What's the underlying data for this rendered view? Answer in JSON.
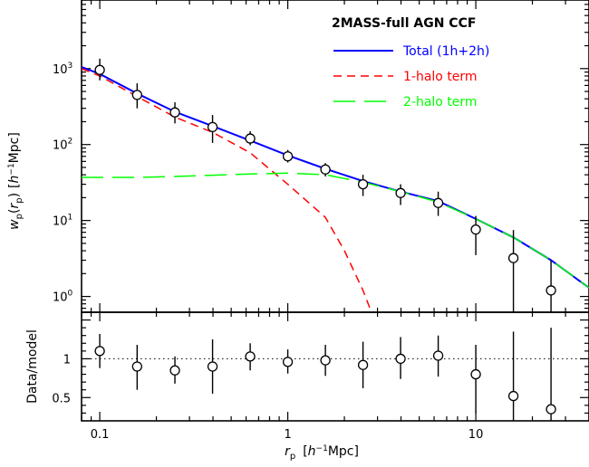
{
  "chart_data": [
    {
      "type": "scatter",
      "title": "2MASS-full AGN CCF",
      "xlabel": "r_p [h^-1 Mpc]",
      "ylabel": "w_p(r_p) [h^-1 Mpc]",
      "xscale": "log",
      "yscale": "log",
      "xlim": [
        0.08,
        40
      ],
      "ylim": [
        0.62,
        8000
      ],
      "legend_position": "top-right",
      "points": {
        "x": [
          0.1,
          0.158,
          0.251,
          0.398,
          0.631,
          1.0,
          1.585,
          2.512,
          3.981,
          6.31,
          10.0,
          15.85,
          25.12
        ],
        "y": [
          960,
          450,
          265,
          170,
          120,
          70,
          47,
          30,
          23,
          17,
          7.6,
          3.2,
          1.2
        ],
        "ylow": [
          700,
          300,
          190,
          105,
          98,
          58,
          38,
          21,
          16,
          11.5,
          3.5,
          0.5,
          0.5
        ],
        "yhigh": [
          1350,
          640,
          360,
          245,
          150,
          85,
          57,
          40,
          30,
          24,
          11.5,
          7.5,
          3.0
        ]
      },
      "series": [
        {
          "name": "Total (1h+2h)",
          "style": "solid",
          "color": "#0000ff",
          "x": [
            0.08,
            0.1,
            0.158,
            0.251,
            0.398,
            0.631,
            1.0,
            1.585,
            2.512,
            3.981,
            6.31,
            10.0,
            15.85,
            25.12,
            40
          ],
          "y": [
            1050,
            850,
            470,
            270,
            175,
            113,
            72,
            48,
            33,
            24,
            18,
            10.5,
            6.0,
            3.0,
            1.3
          ]
        },
        {
          "name": "1-halo term",
          "style": "short-dash",
          "color": "#ff0000",
          "x": [
            0.08,
            0.1,
            0.158,
            0.251,
            0.398,
            0.631,
            1.0,
            1.585,
            2.0,
            2.512,
            2.8
          ],
          "y": [
            1000,
            800,
            430,
            230,
            145,
            78,
            30,
            11,
            4,
            1.2,
            0.6
          ]
        },
        {
          "name": "2-halo term",
          "style": "long-dash",
          "color": "#00ff00",
          "x": [
            0.08,
            0.158,
            0.251,
            0.398,
            0.631,
            1.0,
            1.585,
            2.512,
            3.981,
            6.31,
            10.0,
            15.85,
            25.12,
            40
          ],
          "y": [
            37,
            37,
            38,
            39.5,
            41,
            42,
            40,
            32,
            24,
            17.5,
            10.5,
            6.0,
            3.0,
            1.3
          ]
        }
      ]
    },
    {
      "type": "scatter",
      "ylabel": "Data/model",
      "xscale": "log",
      "xlim": [
        0.08,
        40
      ],
      "ylim": [
        0.2,
        1.6
      ],
      "reference_line": 1,
      "points": {
        "x": [
          0.1,
          0.158,
          0.251,
          0.398,
          0.631,
          1.0,
          1.585,
          2.512,
          3.981,
          6.31,
          10.0,
          15.85,
          25.12
        ],
        "y": [
          1.1,
          0.9,
          0.85,
          0.9,
          1.03,
          0.96,
          0.98,
          0.92,
          1.0,
          1.04,
          0.8,
          0.52,
          0.35
        ],
        "ylow": [
          0.88,
          0.6,
          0.68,
          0.55,
          0.85,
          0.81,
          0.78,
          0.62,
          0.74,
          0.77,
          0.3,
          0.0,
          0.0
        ],
        "yhigh": [
          1.32,
          1.18,
          1.03,
          1.25,
          1.2,
          1.12,
          1.18,
          1.22,
          1.28,
          1.3,
          1.18,
          1.35,
          1.4
        ]
      }
    }
  ],
  "labels": {
    "x_ticks": [
      "0.1",
      "1",
      "10"
    ],
    "x_tick_values": [
      0.1,
      1,
      10
    ],
    "top_y_ticks": [
      {
        "value": 1,
        "base": "10",
        "exp": "0"
      },
      {
        "value": 10,
        "base": "10",
        "exp": "1"
      },
      {
        "value": 100,
        "base": "10",
        "exp": "2"
      },
      {
        "value": 1000,
        "base": "10",
        "exp": "3"
      }
    ],
    "bottom_y_ticks": [
      {
        "value": 0.5,
        "text": "0.5"
      },
      {
        "value": 1,
        "text": "1"
      }
    ],
    "x_axis_main": "r",
    "x_axis_sub": "p",
    "x_axis_unit_pre": "[",
    "x_axis_unit_h": "h",
    "x_axis_unit_exp": "−1",
    "x_axis_unit_post": "Mpc]",
    "y_axis_w": "w",
    "y_axis_sub": "p",
    "y_axis_paren_open": "(",
    "y_axis_r": "r",
    "y_axis_r_sub": "p",
    "y_axis_paren_close": ")",
    "y_axis_unit_pre": "[",
    "y_axis_unit_h": "h",
    "y_axis_unit_exp": "−1",
    "y_axis_unit_post": "Mpc]"
  }
}
